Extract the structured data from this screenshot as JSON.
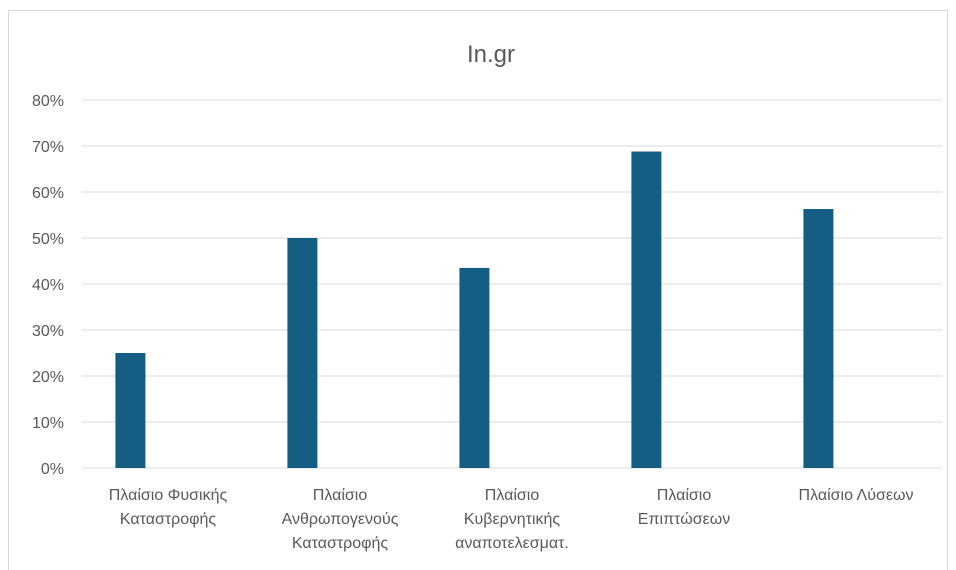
{
  "chart_data": {
    "type": "bar",
    "title": "In.gr",
    "categories": [
      [
        "Πλαίσιο Φυσικής",
        "Καταστροφής"
      ],
      [
        "Πλαίσιο",
        "Ανθρωπογενούς",
        "Καταστροφής"
      ],
      [
        "Πλαίσιο",
        "Κυβερνητικής",
        "αναποτελεσματ."
      ],
      [
        "Πλαίσιο",
        "Επιπτώσεων"
      ],
      [
        "Πλαίσιο Λύσεων"
      ]
    ],
    "values": [
      25,
      50,
      43.5,
      68.8,
      56.3
    ],
    "ylim": [
      0,
      80
    ],
    "yticks": [
      "0%",
      "10%",
      "20%",
      "30%",
      "40%",
      "50%",
      "60%",
      "70%",
      "80%"
    ],
    "grid": true,
    "bar_color": "#155e83"
  }
}
